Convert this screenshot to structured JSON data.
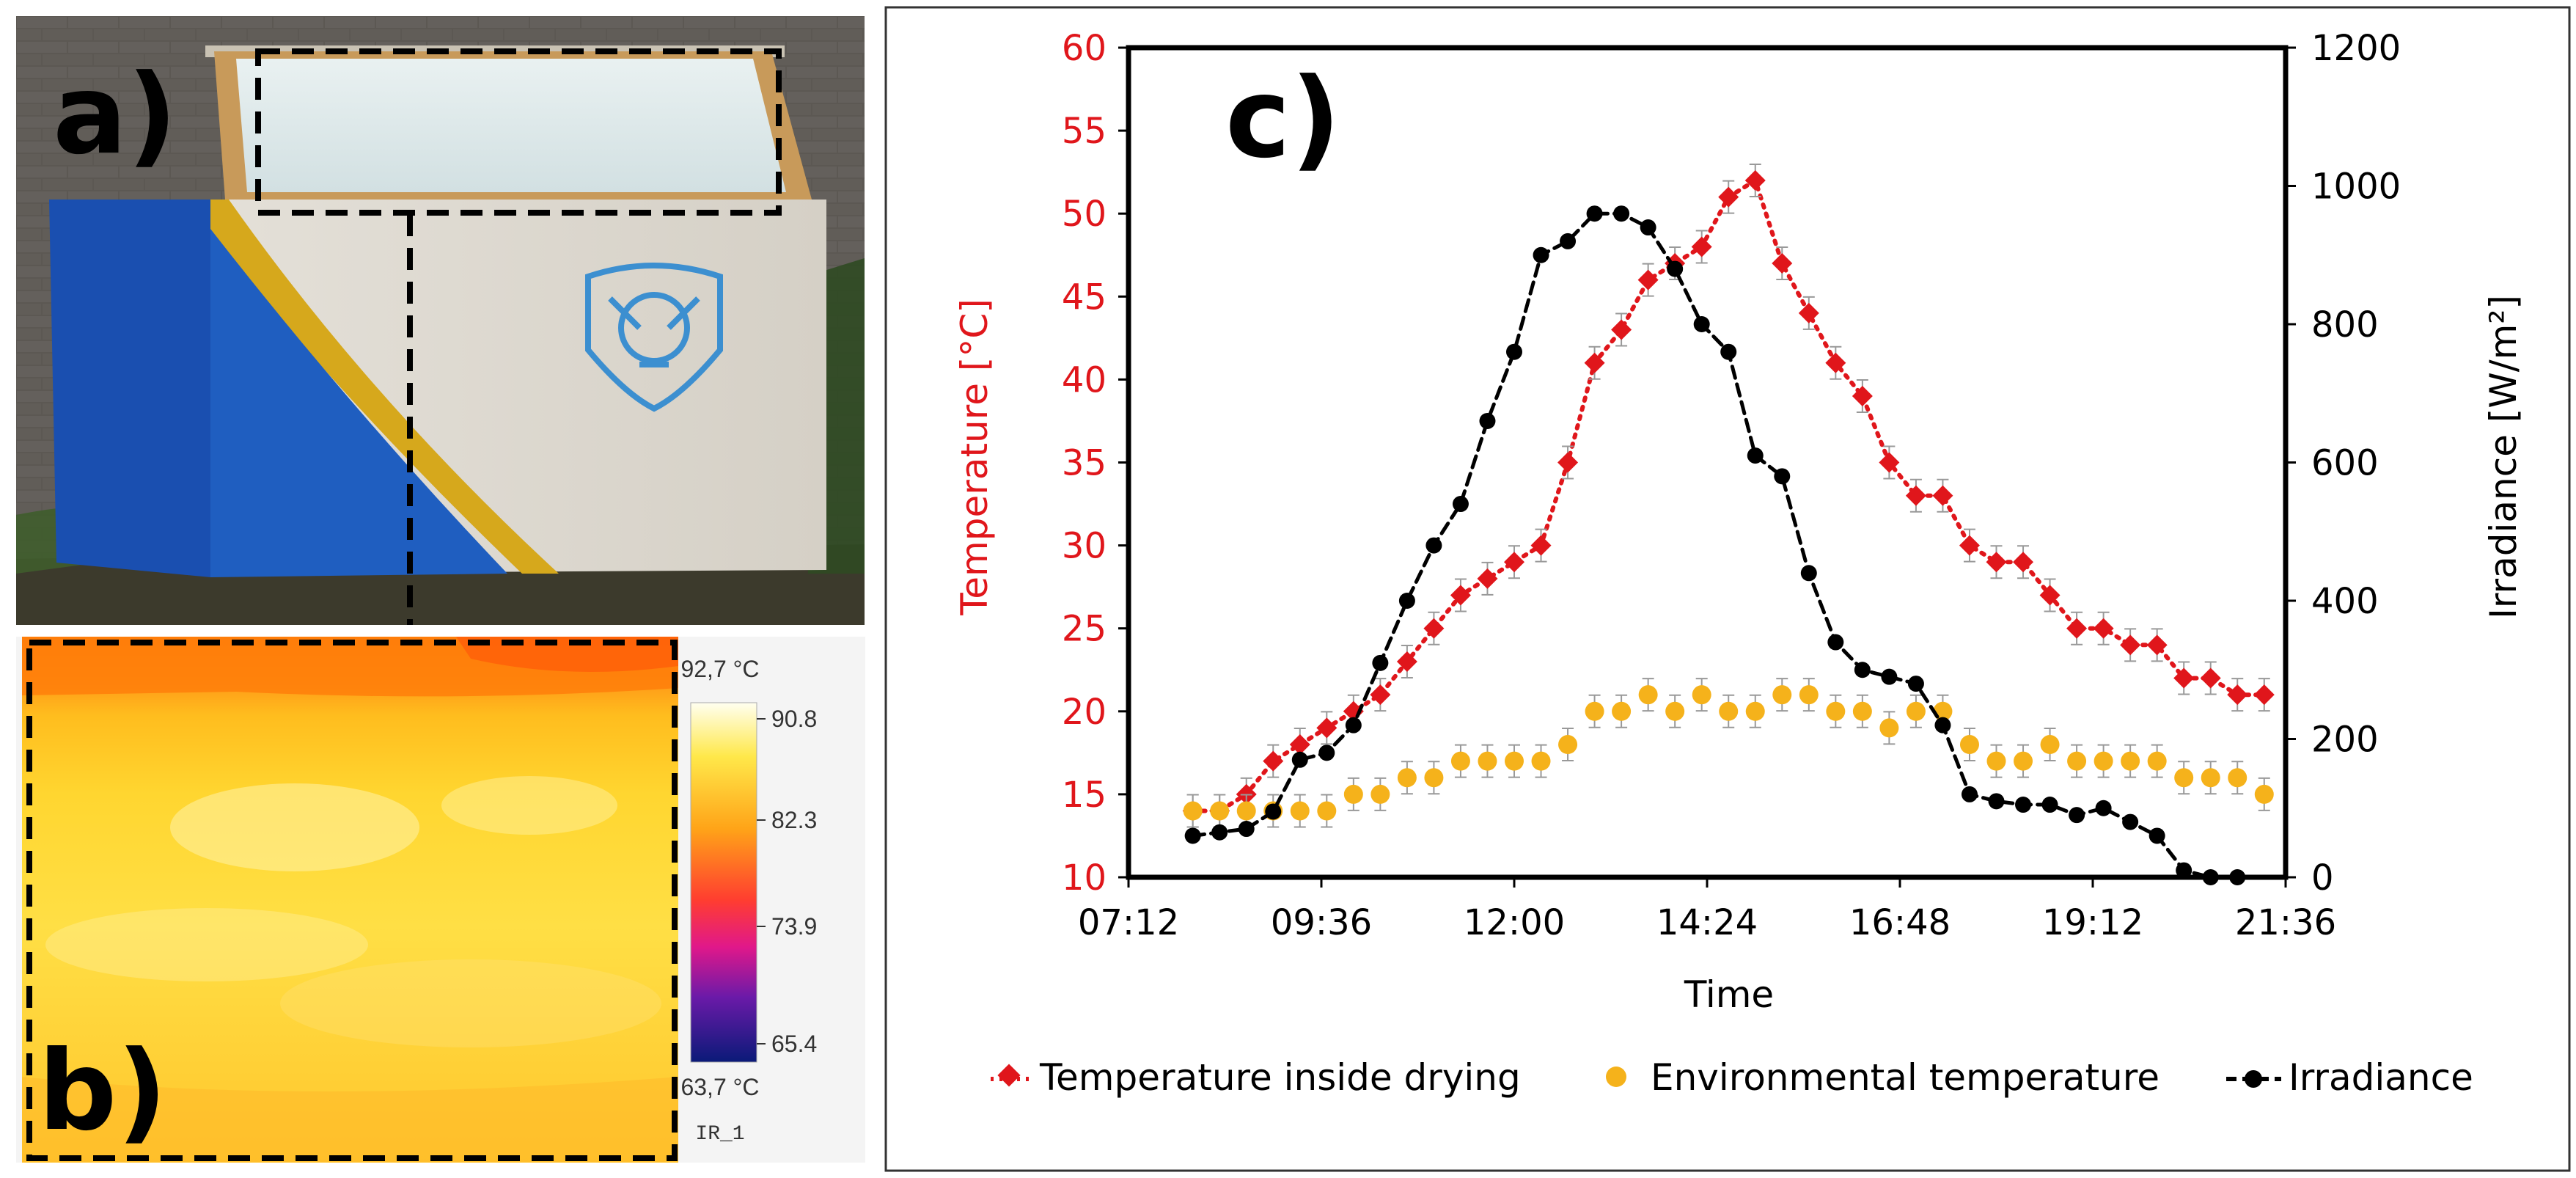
{
  "panel_a": {
    "label": "a)"
  },
  "panel_b": {
    "label": "b)",
    "scale_max": "92,7 °C",
    "scale_min": "63,7 °C",
    "ticks": [
      "90.8",
      "82.3",
      "73.9",
      "65.4"
    ],
    "caption": "IR_1",
    "colors": {
      "hot": "#fff6a8",
      "warm": "#ffb020",
      "mid": "#ff5a18",
      "cool": "#d8166a",
      "cold": "#5a1e9a",
      "coldest": "#0a1a78"
    }
  },
  "panel_c": {
    "label": "c)"
  },
  "chart_data": {
    "type": "line",
    "title": "",
    "xlabel": "Time",
    "ylabel": "Temperature [°C]",
    "y2label": "Irradiance [W/m²]",
    "ylim": [
      10,
      60
    ],
    "y2lim": [
      0,
      1200
    ],
    "xlim": [
      "07:12",
      "21:36"
    ],
    "xticks": [
      "07:12",
      "09:36",
      "12:00",
      "14:24",
      "16:48",
      "19:12",
      "21:36"
    ],
    "yticks": [
      "10",
      "15",
      "20",
      "25",
      "30",
      "35",
      "40",
      "45",
      "50",
      "55",
      "60"
    ],
    "y2ticks": [
      "0",
      "200",
      "400",
      "600",
      "800",
      "1000",
      "1200"
    ],
    "x_step_minutes": 20,
    "x_start": "08:00",
    "series": [
      {
        "name": "Temperature inside drying",
        "axis": "left",
        "color": "#e0161b",
        "style": "dotted",
        "marker": "diamond",
        "values": [
          14,
          14,
          15,
          17,
          18,
          19,
          20,
          21,
          23,
          25,
          27,
          28,
          29,
          30,
          35,
          41,
          43,
          46,
          47,
          48,
          51,
          52,
          47,
          44,
          41,
          39,
          35,
          33,
          33,
          30,
          29,
          29,
          27,
          25,
          25,
          24,
          24,
          22,
          22,
          21,
          21
        ]
      },
      {
        "name": "Environmental temperature",
        "axis": "left",
        "color": "#f5b21b",
        "style": "none",
        "marker": "circle",
        "values": [
          14,
          14,
          14,
          14,
          14,
          14,
          15,
          15,
          16,
          16,
          17,
          17,
          17,
          17,
          18,
          20,
          20,
          21,
          20,
          21,
          20,
          20,
          21,
          21,
          20,
          20,
          19,
          20,
          20,
          18,
          17,
          17,
          18,
          17,
          17,
          17,
          17,
          16,
          16,
          16,
          15
        ]
      },
      {
        "name": "Irradiance",
        "axis": "right",
        "color": "#000000",
        "style": "dashed",
        "marker": "circle",
        "values": [
          60,
          65,
          70,
          95,
          170,
          180,
          220,
          310,
          400,
          480,
          540,
          660,
          760,
          900,
          920,
          960,
          960,
          940,
          880,
          800,
          760,
          610,
          580,
          440,
          340,
          300,
          290,
          280,
          220,
          120,
          110,
          105,
          105,
          90,
          100,
          80,
          60,
          10,
          0,
          0
        ]
      }
    ],
    "legend_position": "bottom",
    "legend": [
      "Temperature inside drying",
      "Environmental temperature",
      "Irradiance"
    ]
  }
}
